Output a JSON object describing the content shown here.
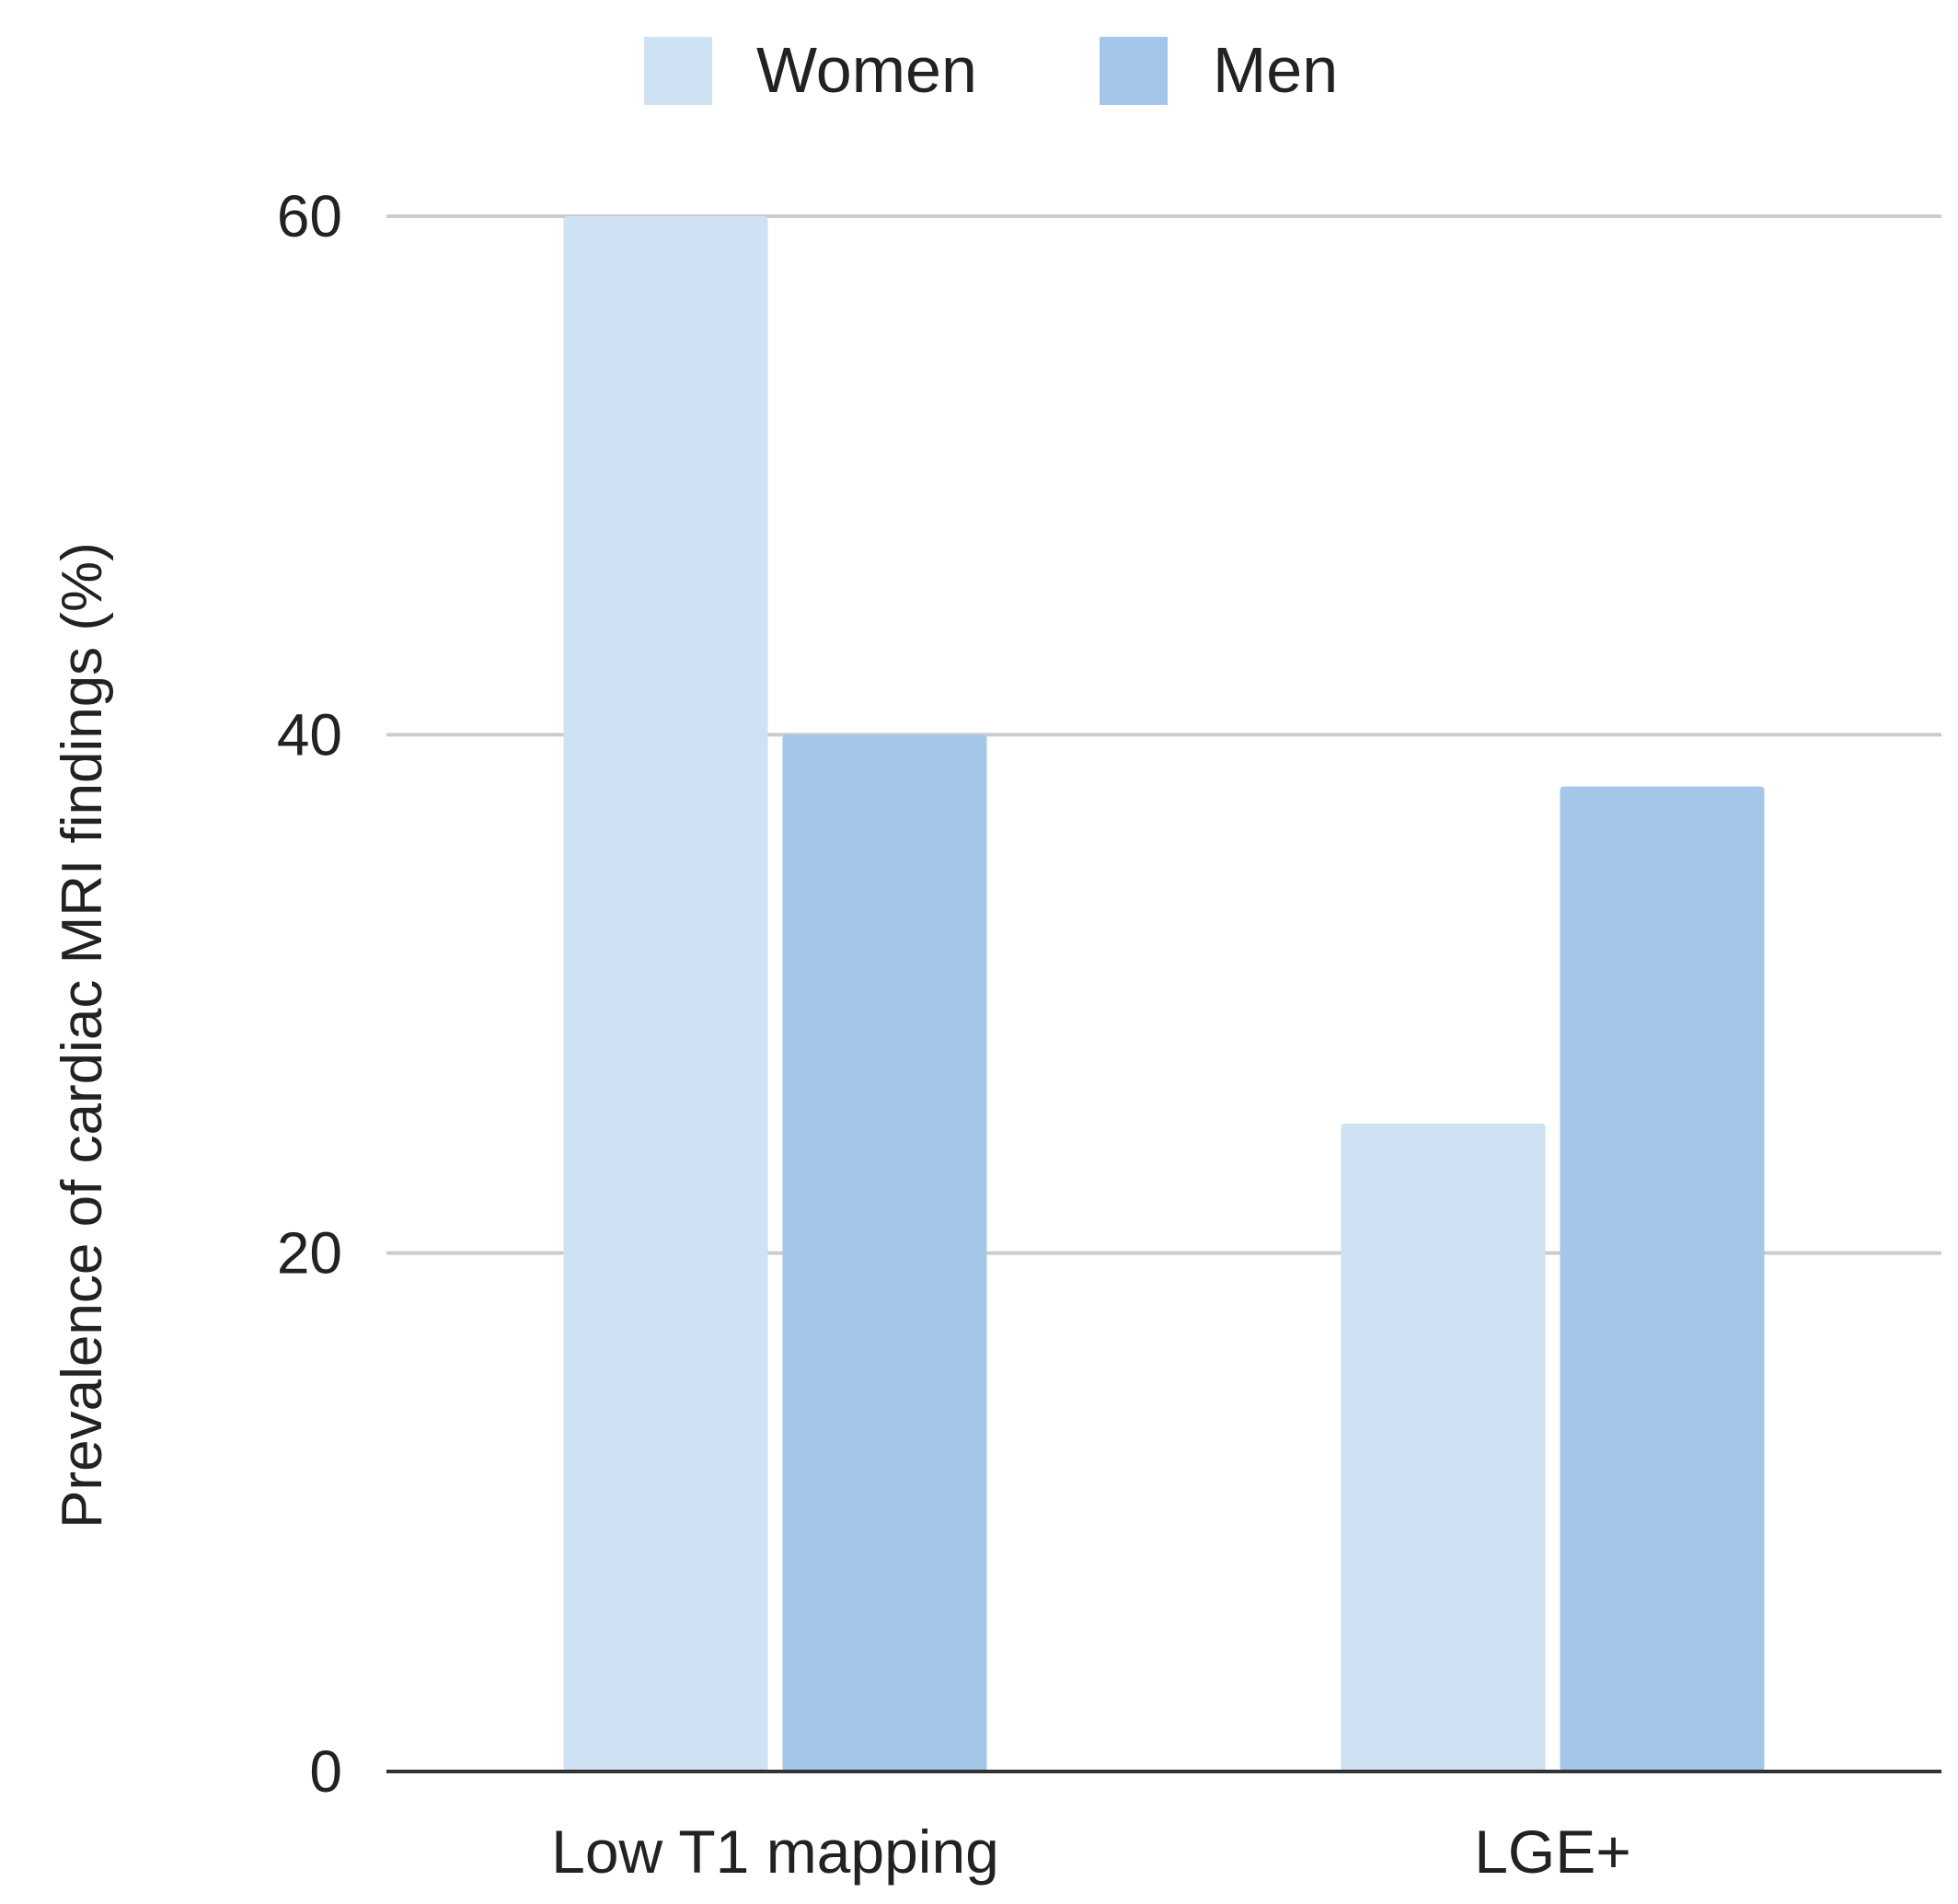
{
  "chart_data": {
    "type": "bar",
    "title": "",
    "xlabel": "",
    "ylabel": "Prevalence of cardiac MRI findings (%)",
    "categories": [
      "Low T1 mapping",
      "LGE+"
    ],
    "series": [
      {
        "name": "Women",
        "values": [
          60,
          25
        ],
        "color": "#cfe2f3"
      },
      {
        "name": "Men",
        "values": [
          40,
          38
        ],
        "color": "#a4c6e8"
      }
    ],
    "ylim": [
      0,
      60
    ],
    "yticks": [
      0,
      20,
      40,
      60
    ],
    "ytick_labels": [
      "0",
      "20",
      "40",
      "60"
    ],
    "grid": true,
    "legend_position": "top-center",
    "colors": {
      "gridline": "#cccccc",
      "baseline": "#333333",
      "text": "#222222"
    }
  }
}
